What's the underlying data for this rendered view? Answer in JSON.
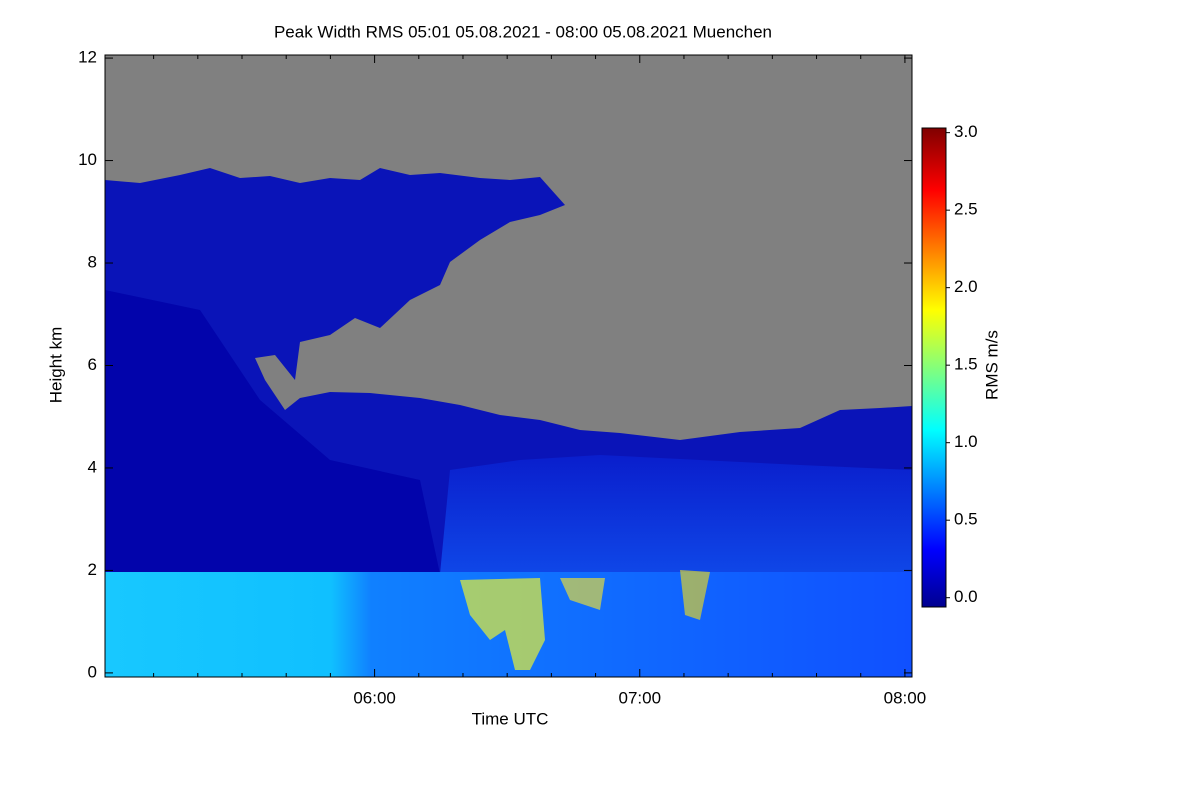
{
  "chart_data": {
    "type": "heatmap",
    "title": "Peak Width RMS   05:01 05.08.2021 - 08:00 05.08.2021 Muenchen",
    "xlabel": "Time UTC",
    "ylabel": "Height km",
    "xlim": [
      299,
      481.6
    ],
    "xticks": [
      {
        "value": 360,
        "label": "06:00"
      },
      {
        "value": 420,
        "label": "07:00"
      },
      {
        "value": 480,
        "label": "08:00"
      }
    ],
    "xminorticks": [
      310,
      320,
      330,
      340,
      350,
      370,
      380,
      390,
      400,
      410,
      430,
      440,
      450,
      460,
      470
    ],
    "ylim": [
      -0.08,
      12.06
    ],
    "yticks": [
      0,
      2,
      4,
      6,
      8,
      10,
      12
    ],
    "colorbar": {
      "label": "RMS m/s",
      "colormap": "jet",
      "lim": [
        -0.06,
        3.03
      ],
      "ticks": [
        {
          "value": 0,
          "label": "0.0"
        },
        {
          "value": 0.5,
          "label": "0.5"
        },
        {
          "value": 1,
          "label": "1.0"
        },
        {
          "value": 1.5,
          "label": "1.5"
        },
        {
          "value": 2,
          "label": "2.0"
        },
        {
          "value": 2.5,
          "label": "2.5"
        },
        {
          "value": 3,
          "label": "3.0"
        }
      ]
    }
  }
}
